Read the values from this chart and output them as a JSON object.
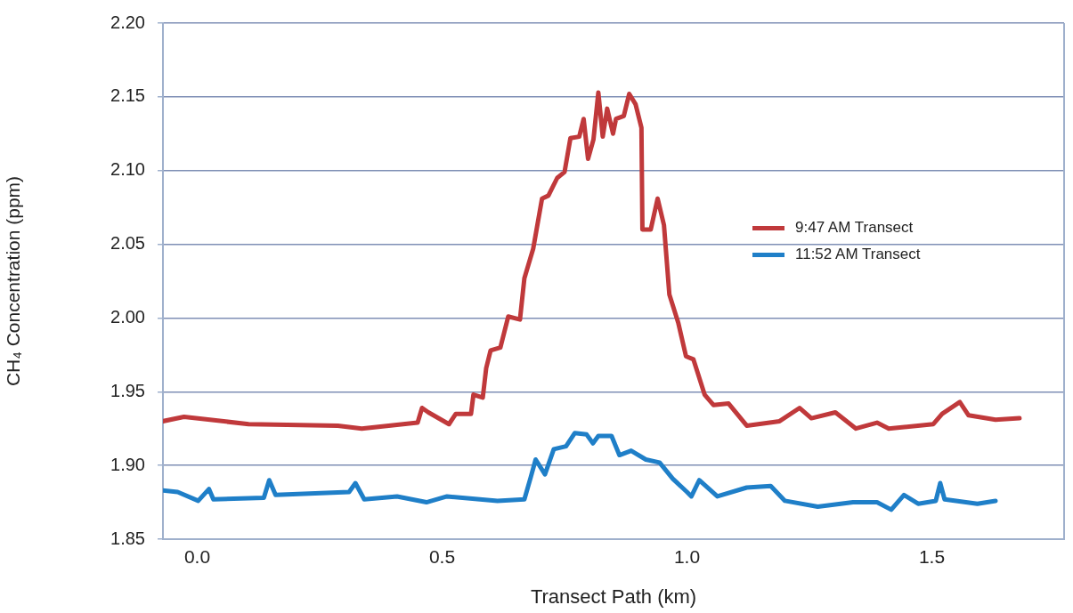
{
  "chart_data": {
    "type": "line",
    "xlabel": "Transect Path (km)",
    "ylabel": "CH₄ Concentration (ppm)",
    "xlim": [
      -0.07,
      1.77
    ],
    "xticks": [
      {
        "value": 0,
        "label": "0.0"
      },
      {
        "value": 0.5,
        "label": "0.5"
      },
      {
        "value": 1,
        "label": "1.0"
      },
      {
        "value": 1.5,
        "label": "1.5"
      }
    ],
    "ylim": [
      1.85,
      2.2
    ],
    "yticks": [
      {
        "value": 1.85,
        "label": "1.85"
      },
      {
        "value": 1.9,
        "label": "1.90"
      },
      {
        "value": 1.95,
        "label": "1.95"
      },
      {
        "value": 2,
        "label": "2.00"
      },
      {
        "value": 2.05,
        "label": "2.05"
      },
      {
        "value": 2.1,
        "label": "2.10"
      },
      {
        "value": 2.15,
        "label": "2.15"
      },
      {
        "value": 2.2,
        "label": "2.20"
      }
    ],
    "grid": "y",
    "legend": "right",
    "marker": "none",
    "line_style": "solid",
    "series": [
      {
        "name": "9:47 AM Transect",
        "color": "#c0393b",
        "x": [
          -0.07,
          -0.027,
          0.105,
          0.287,
          0.336,
          0.45,
          0.459,
          0.472,
          0.514,
          0.528,
          0.559,
          0.564,
          0.583,
          0.59,
          0.599,
          0.619,
          0.635,
          0.659,
          0.668,
          0.686,
          0.704,
          0.717,
          0.735,
          0.75,
          0.762,
          0.78,
          0.789,
          0.798,
          0.809,
          0.819,
          0.828,
          0.837,
          0.849,
          0.855,
          0.871,
          0.882,
          0.895,
          0.907,
          0.909,
          0.926,
          0.94,
          0.953,
          0.964,
          0.982,
          0.998,
          1.013,
          1.036,
          1.054,
          1.085,
          1.122,
          1.189,
          1.23,
          1.254,
          1.303,
          1.345,
          1.388,
          1.412,
          1.503,
          1.521,
          1.557,
          1.575,
          1.63,
          1.679
        ],
        "values": [
          1.93,
          1.933,
          1.928,
          1.927,
          1.925,
          1.929,
          1.939,
          1.936,
          1.928,
          1.935,
          1.935,
          1.948,
          1.946,
          1.966,
          1.978,
          1.98,
          2.001,
          1.999,
          2.027,
          2.047,
          2.081,
          2.083,
          2.095,
          2.099,
          2.122,
          2.123,
          2.135,
          2.108,
          2.121,
          2.153,
          2.123,
          2.142,
          2.125,
          2.135,
          2.137,
          2.152,
          2.145,
          2.129,
          2.06,
          2.06,
          2.081,
          2.063,
          2.016,
          1.997,
          1.974,
          1.972,
          1.948,
          1.941,
          1.942,
          1.927,
          1.93,
          1.939,
          1.932,
          1.936,
          1.925,
          1.929,
          1.925,
          1.928,
          1.935,
          1.943,
          1.934,
          1.931,
          1.932
        ]
      },
      {
        "name": "11:52 AM Transect",
        "color": "#1f7fc8",
        "x": [
          -0.07,
          -0.04,
          0.002,
          0.024,
          0.033,
          0.136,
          0.147,
          0.16,
          0.31,
          0.323,
          0.341,
          0.408,
          0.468,
          0.51,
          0.613,
          0.668,
          0.681,
          0.691,
          0.71,
          0.728,
          0.753,
          0.771,
          0.795,
          0.808,
          0.819,
          0.846,
          0.862,
          0.886,
          0.916,
          0.944,
          0.971,
          1.0,
          1.009,
          1.025,
          1.062,
          1.122,
          1.171,
          1.2,
          1.267,
          1.339,
          1.388,
          1.417,
          1.443,
          1.472,
          1.508,
          1.517,
          1.526,
          1.593,
          1.63
        ],
        "values": [
          1.883,
          1.882,
          1.876,
          1.884,
          1.877,
          1.878,
          1.89,
          1.88,
          1.882,
          1.888,
          1.877,
          1.879,
          1.875,
          1.879,
          1.876,
          1.877,
          1.892,
          1.904,
          1.894,
          1.911,
          1.913,
          1.922,
          1.921,
          1.915,
          1.92,
          1.92,
          1.907,
          1.91,
          1.904,
          1.902,
          1.891,
          1.882,
          1.879,
          1.89,
          1.879,
          1.885,
          1.886,
          1.876,
          1.872,
          1.875,
          1.875,
          1.87,
          1.88,
          1.874,
          1.876,
          1.888,
          1.877,
          1.874,
          1.876
        ]
      }
    ]
  }
}
